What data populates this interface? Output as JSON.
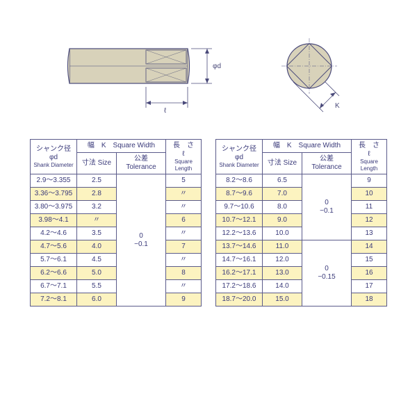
{
  "drawing": {
    "stroke": "#4a4a7a",
    "fill": "#d8d2ba",
    "hatch": "#7a7a8a",
    "dim_label_l": "ℓ",
    "dim_label_d": "φd",
    "dim_label_k": "K"
  },
  "headers": {
    "shank_jp": "シャンク径φd",
    "shank_en": "Shank Diameter",
    "width_jp": "幅　K　Square Width",
    "size_jp": "寸法 Size",
    "tol_jp": "公差 Tolerance",
    "len_jp": "長　さ　ℓ",
    "len_en": "Square Length"
  },
  "tolerance1a": "0\n−0.1",
  "tolerance2a": "0\n−0.1",
  "tolerance2b": "0\n−0.15",
  "t1": {
    "rows": [
      {
        "d": "2.9～3.355",
        "s": "2.5",
        "l": "5"
      },
      {
        "d": "3.36～3.795",
        "s": "2.8",
        "l": "〃"
      },
      {
        "d": "3.80～3.975",
        "s": "3.2",
        "l": "〃"
      },
      {
        "d": "3.98～4.1",
        "s": "〃",
        "l": "6"
      },
      {
        "d": "4.2～4.6",
        "s": "3.5",
        "l": "〃"
      },
      {
        "d": "4.7～5.6",
        "s": "4.0",
        "l": "7"
      },
      {
        "d": "5.7～6.1",
        "s": "4.5",
        "l": "〃"
      },
      {
        "d": "6.2～6.6",
        "s": "5.0",
        "l": "8"
      },
      {
        "d": "6.7～7.1",
        "s": "5.5",
        "l": "〃"
      },
      {
        "d": "7.2～8.1",
        "s": "6.0",
        "l": "9"
      }
    ]
  },
  "t2": {
    "rows": [
      {
        "d": "8.2～8.6",
        "s": "6.5",
        "l": "9"
      },
      {
        "d": "8.7～9.6",
        "s": "7.0",
        "l": "10"
      },
      {
        "d": "9.7～10.6",
        "s": "8.0",
        "l": "11"
      },
      {
        "d": "10.7～12.1",
        "s": "9.0",
        "l": "12"
      },
      {
        "d": "12.2～13.6",
        "s": "10.0",
        "l": "13"
      },
      {
        "d": "13.7～14.6",
        "s": "11.0",
        "l": "14"
      },
      {
        "d": "14.7～16.1",
        "s": "12.0",
        "l": "15"
      },
      {
        "d": "16.2～17.1",
        "s": "13.0",
        "l": "16"
      },
      {
        "d": "17.2～18.6",
        "s": "14.0",
        "l": "17"
      },
      {
        "d": "18.7～20.0",
        "s": "15.0",
        "l": "18"
      }
    ],
    "tol_split": 5
  }
}
